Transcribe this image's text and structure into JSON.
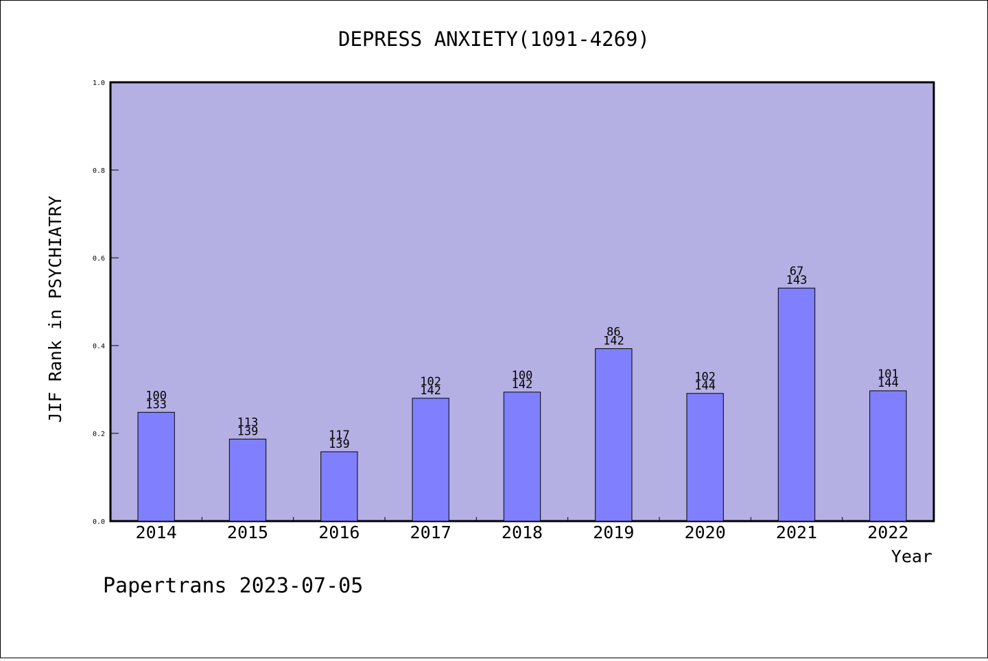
{
  "chart_data": {
    "type": "bar",
    "title": "DEPRESS ANXIETY(1091-4269)",
    "xlabel": "Year",
    "ylabel": "JIF Rank in PSYCHIATRY",
    "ylim": [
      0,
      1.0
    ],
    "yticks": [
      "0.0",
      "0.2",
      "0.4",
      "0.6",
      "0.8",
      "1.0"
    ],
    "categories": [
      "2014",
      "2015",
      "2016",
      "2017",
      "2018",
      "2019",
      "2020",
      "2021",
      "2022"
    ],
    "values": [
      0.248,
      0.187,
      0.158,
      0.28,
      0.294,
      0.393,
      0.291,
      0.531,
      0.297
    ],
    "ranks": [
      "100",
      "113",
      "117",
      "102",
      "100",
      "86",
      "102",
      "67",
      "101"
    ],
    "totals": [
      "133",
      "139",
      "139",
      "142",
      "142",
      "142",
      "144",
      "143",
      "144"
    ],
    "colors": {
      "plot_bg": "#b5b0e3",
      "bar": "#8080ff",
      "axis": "#000000"
    },
    "grid": false
  },
  "footer": "Papertrans 2023-07-05"
}
